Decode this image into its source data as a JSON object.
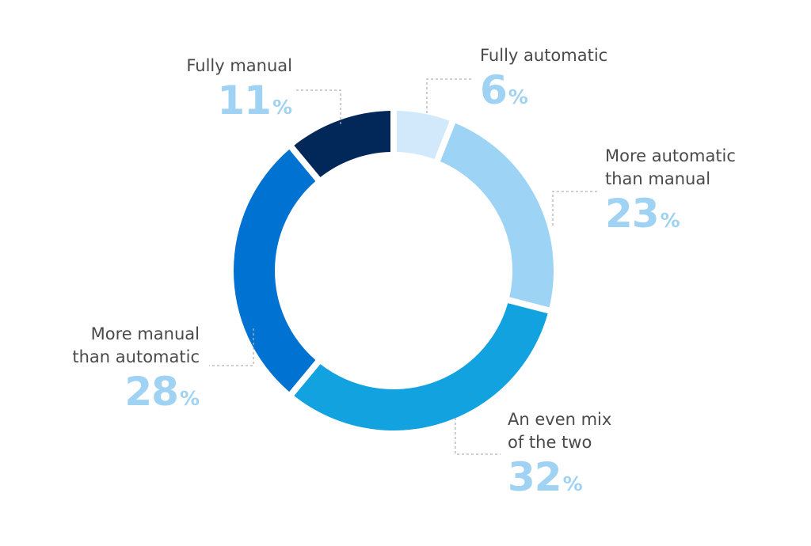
{
  "chart_data": {
    "type": "pie",
    "variant": "donut",
    "title": "",
    "percent_symbol": "%",
    "slices": [
      {
        "name": "Fully automatic",
        "lines": [
          "Fully automatic"
        ],
        "value": 6,
        "color": "#d2e9fb"
      },
      {
        "name": "More automatic than manual",
        "lines": [
          "More automatic",
          "than manual"
        ],
        "value": 23,
        "color": "#9dd3f4"
      },
      {
        "name": "An even mix of the two",
        "lines": [
          "An even mix",
          "of the two"
        ],
        "value": 32,
        "color": "#12a2e0"
      },
      {
        "name": "More manual than automatic",
        "lines": [
          "More manual",
          "than automatic"
        ],
        "value": 28,
        "color": "#0072d1"
      },
      {
        "name": "Fully manual",
        "lines": [
          "Fully manual"
        ],
        "value": 11,
        "color": "#02285a"
      }
    ]
  }
}
